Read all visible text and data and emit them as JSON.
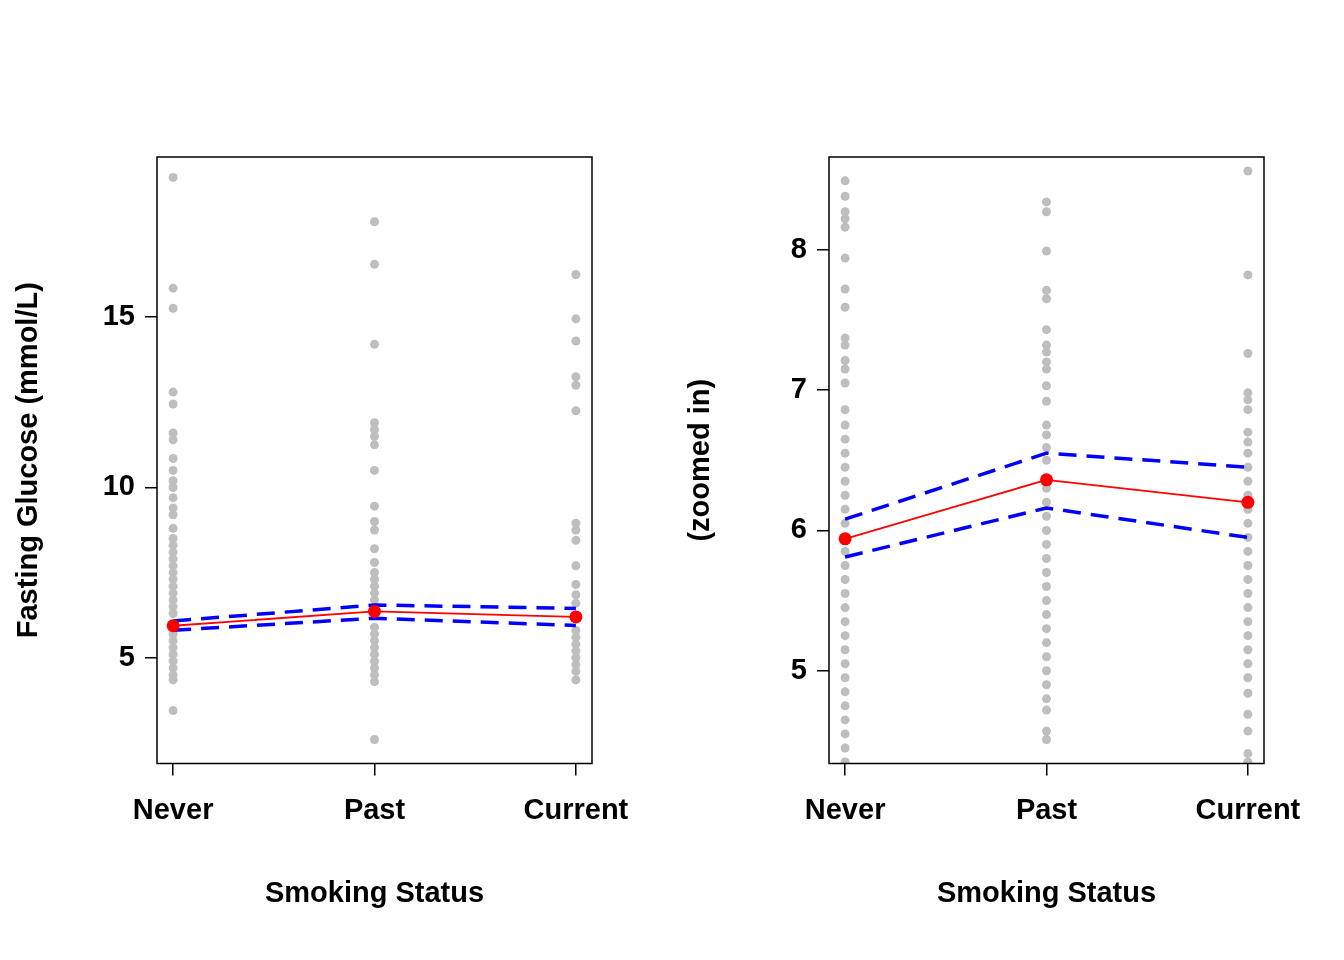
{
  "chart_data": [
    {
      "type": "scatter",
      "xlabel": "Smoking Status",
      "ylabel": "Fasting Glucose (mmol/L)",
      "categories": [
        "Never",
        "Past",
        "Current"
      ],
      "ylim": [
        1.9,
        19.7
      ],
      "yticks": [
        5,
        10,
        15
      ],
      "grid": false,
      "legend": false,
      "series": [
        {
          "marker": "circle",
          "color": "#bebebe",
          "x": [
            "Never",
            "Never",
            "Never",
            "Never",
            "Never",
            "Never",
            "Never",
            "Never",
            "Never",
            "Never",
            "Never",
            "Never",
            "Never",
            "Never",
            "Never",
            "Never",
            "Never",
            "Never",
            "Never",
            "Never",
            "Never",
            "Never",
            "Never",
            "Never",
            "Never",
            "Never",
            "Never",
            "Never",
            "Never",
            "Never",
            "Never",
            "Never",
            "Never",
            "Never",
            "Never",
            "Never"
          ],
          "values": [
            19.1,
            15.85,
            15.26,
            12.8,
            12.45,
            11.6,
            11.4,
            10.85,
            10.5,
            10.2,
            10.0,
            9.7,
            9.4,
            9.2,
            8.8,
            8.5,
            8.3,
            8.1,
            7.9,
            7.7,
            7.5,
            7.3,
            7.1,
            6.9,
            6.7,
            6.5,
            6.3,
            5.7,
            5.5,
            5.3,
            5.1,
            4.9,
            4.7,
            4.5,
            4.35,
            3.45
          ]
        },
        {
          "marker": "circle",
          "color": "#bebebe",
          "x": [
            "Past",
            "Past",
            "Past",
            "Past",
            "Past",
            "Past",
            "Past",
            "Past",
            "Past",
            "Past",
            "Past",
            "Past",
            "Past",
            "Past",
            "Past",
            "Past",
            "Past",
            "Past",
            "Past",
            "Past",
            "Past",
            "Past",
            "Past",
            "Past",
            "Past",
            "Past",
            "Past",
            "Past"
          ],
          "values": [
            17.8,
            16.55,
            14.2,
            11.9,
            11.7,
            11.5,
            11.25,
            10.5,
            9.45,
            9.0,
            8.75,
            8.2,
            7.8,
            7.5,
            7.3,
            7.1,
            6.9,
            6.7,
            5.9,
            5.7,
            5.5,
            5.3,
            5.1,
            4.9,
            4.7,
            4.5,
            4.3,
            2.6
          ]
        },
        {
          "marker": "circle",
          "color": "#bebebe",
          "x": [
            "Current",
            "Current",
            "Current",
            "Current",
            "Current",
            "Current",
            "Current",
            "Current",
            "Current",
            "Current",
            "Current",
            "Current",
            "Current",
            "Current",
            "Current",
            "Current",
            "Current",
            "Current",
            "Current",
            "Current",
            "Current"
          ],
          "values": [
            16.25,
            14.95,
            14.3,
            13.25,
            13.0,
            12.25,
            8.95,
            8.75,
            8.45,
            7.7,
            7.15,
            6.85,
            6.6,
            5.8,
            5.6,
            5.4,
            5.2,
            5.0,
            4.8,
            4.6,
            4.35
          ]
        },
        {
          "type": "line",
          "marker": "none",
          "line_style": "dashed",
          "color": "#0000ff",
          "values": [
            6.08,
            6.55,
            6.45
          ]
        },
        {
          "type": "line",
          "marker": "none",
          "line_style": "dashed",
          "color": "#0000ff",
          "values": [
            5.81,
            6.16,
            5.95
          ]
        },
        {
          "type": "line",
          "marker": "circle",
          "line_style": "solid",
          "color": "#ff0000",
          "values": [
            5.94,
            6.36,
            6.2
          ]
        }
      ]
    },
    {
      "type": "scatter",
      "xlabel": "Smoking Status",
      "ylabel": "(zoomed in)",
      "categories": [
        "Never",
        "Past",
        "Current"
      ],
      "ylim": [
        4.34,
        8.66
      ],
      "yticks": [
        5,
        6,
        7,
        8
      ],
      "grid": false,
      "legend": false,
      "series": [
        {
          "marker": "circle",
          "color": "#bebebe",
          "x": [
            "Never",
            "Never",
            "Never",
            "Never",
            "Never",
            "Never",
            "Never",
            "Never",
            "Never",
            "Never",
            "Never",
            "Never",
            "Never",
            "Never",
            "Never",
            "Never",
            "Never",
            "Never",
            "Never",
            "Never",
            "Never",
            "Never",
            "Never",
            "Never",
            "Never",
            "Never",
            "Never",
            "Never",
            "Never",
            "Never",
            "Never",
            "Never",
            "Never",
            "Never",
            "Never",
            "Never",
            "Never",
            "Never"
          ],
          "values": [
            8.49,
            8.38,
            8.27,
            8.22,
            8.16,
            7.94,
            7.72,
            7.59,
            7.37,
            7.32,
            7.21,
            7.15,
            7.05,
            6.86,
            6.75,
            6.65,
            6.55,
            6.45,
            6.35,
            6.25,
            6.15,
            6.05,
            5.85,
            5.75,
            5.65,
            5.55,
            5.45,
            5.35,
            5.25,
            5.15,
            5.05,
            4.95,
            4.85,
            4.75,
            4.65,
            4.55,
            4.45,
            4.35
          ]
        },
        {
          "marker": "circle",
          "color": "#bebebe",
          "x": [
            "Past",
            "Past",
            "Past",
            "Past",
            "Past",
            "Past",
            "Past",
            "Past",
            "Past",
            "Past",
            "Past",
            "Past",
            "Past",
            "Past",
            "Past",
            "Past",
            "Past",
            "Past",
            "Past",
            "Past",
            "Past",
            "Past",
            "Past",
            "Past",
            "Past",
            "Past",
            "Past",
            "Past",
            "Past",
            "Past",
            "Past",
            "Past",
            "Past",
            "Past",
            "Past"
          ],
          "values": [
            8.34,
            8.27,
            7.99,
            7.71,
            7.65,
            7.43,
            7.32,
            7.27,
            7.2,
            7.15,
            7.03,
            6.92,
            6.75,
            6.68,
            6.59,
            6.5,
            6.3,
            6.2,
            6.1,
            6.0,
            5.9,
            5.8,
            5.7,
            5.6,
            5.5,
            5.4,
            5.3,
            5.2,
            5.1,
            5.0,
            4.9,
            4.8,
            4.72,
            4.57,
            4.51
          ]
        },
        {
          "marker": "circle",
          "color": "#bebebe",
          "x": [
            "Current",
            "Current",
            "Current",
            "Current",
            "Current",
            "Current",
            "Current",
            "Current",
            "Current",
            "Current",
            "Current",
            "Current",
            "Current",
            "Current",
            "Current",
            "Current",
            "Current",
            "Current",
            "Current",
            "Current",
            "Current",
            "Current",
            "Current",
            "Current",
            "Current",
            "Current",
            "Current",
            "Current",
            "Current",
            "Current"
          ],
          "values": [
            8.56,
            7.82,
            7.26,
            6.98,
            6.93,
            6.86,
            6.7,
            6.63,
            6.55,
            6.45,
            6.35,
            6.25,
            6.15,
            6.05,
            5.95,
            5.85,
            5.75,
            5.65,
            5.55,
            5.45,
            5.35,
            5.25,
            5.15,
            5.05,
            4.95,
            4.84,
            4.69,
            4.57,
            4.41,
            4.35
          ]
        },
        {
          "type": "line",
          "marker": "none",
          "line_style": "dashed",
          "color": "#0000ff",
          "values": [
            6.08,
            6.55,
            6.45
          ]
        },
        {
          "type": "line",
          "marker": "none",
          "line_style": "dashed",
          "color": "#0000ff",
          "values": [
            5.81,
            6.16,
            5.95
          ]
        },
        {
          "type": "line",
          "marker": "circle",
          "line_style": "solid",
          "color": "#ff0000",
          "values": [
            5.94,
            6.36,
            6.2
          ]
        }
      ]
    }
  ]
}
